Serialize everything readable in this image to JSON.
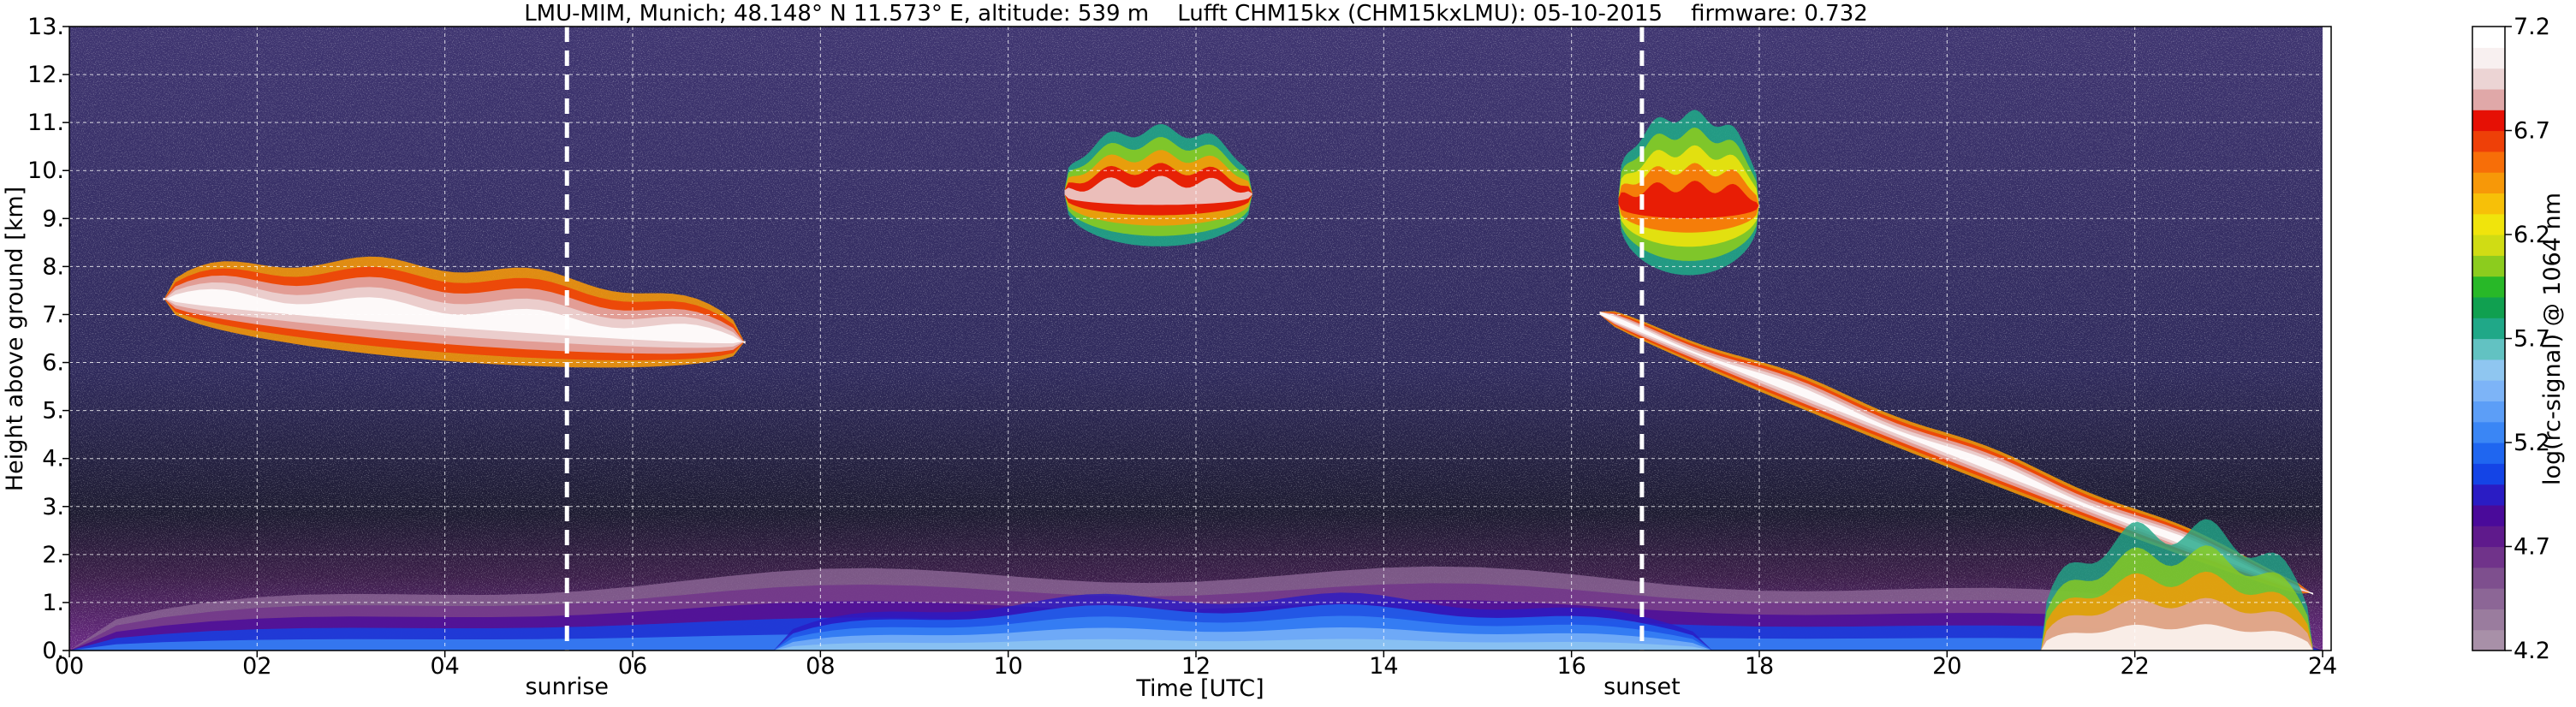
{
  "chart_data": {
    "type": "heatmap",
    "title": "LMU-MIM, Munich; 48.148° N 11.573° E, altitude: 539 m    Lufft CHM15kx (CHM15kxLMU): 05-10-2015    firmware: 0.732",
    "xlabel": "Time [UTC]",
    "ylabel": "Height above ground [km]",
    "xlim": [
      0,
      24
    ],
    "ylim": [
      0,
      13
    ],
    "x_ticks": [
      "00",
      "02",
      "04",
      "06",
      "08",
      "10",
      "12",
      "14",
      "16",
      "18",
      "20",
      "22",
      "24"
    ],
    "y_ticks": [
      "0.",
      "1.",
      "2.",
      "3.",
      "4.",
      "5.",
      "6.",
      "7.",
      "8.",
      "9.",
      "10.",
      "11.",
      "12.",
      "13."
    ],
    "grid": true,
    "markers": [
      {
        "label": "sunrise",
        "x": 5.3
      },
      {
        "label": "sunset",
        "x": 16.75
      }
    ],
    "colorbar": {
      "label": "log(rc-signal) @ 1064 nm",
      "range": [
        4.2,
        7.2
      ],
      "ticks": [
        "4.2",
        "4.7",
        "5.2",
        "5.7",
        "6.2",
        "6.7",
        "7.2"
      ],
      "colors": [
        "#a890a8",
        "#9a7c9e",
        "#8c6696",
        "#7e4f8e",
        "#70338a",
        "#5f1a8c",
        "#4a0a9a",
        "#2a1cc4",
        "#1444e6",
        "#1f66f0",
        "#3a86f5",
        "#5c9ef7",
        "#7db4f7",
        "#8fc6f0",
        "#62c2c2",
        "#20a888",
        "#10a050",
        "#28b828",
        "#8ccc1e",
        "#d0dc14",
        "#f0e40c",
        "#f7c008",
        "#f79808",
        "#f76e08",
        "#ee4008",
        "#e61005",
        "#e0a8a8",
        "#ecd4d4",
        "#f8f0f0",
        "#ffffff"
      ]
    },
    "features": [
      {
        "name": "boundary layer",
        "x": [
          0,
          24
        ],
        "height_km": [
          0,
          1.6
        ],
        "log_signal": [
          4.5,
          5.2
        ]
      },
      {
        "name": "daytime aerosol layer",
        "x": [
          7.5,
          17.5
        ],
        "height_km": [
          0,
          1.1
        ],
        "log_signal": [
          5.0,
          5.6
        ]
      },
      {
        "name": "cirrus band",
        "x": [
          1.0,
          7.2
        ],
        "height_km": [
          5.8,
          8.0
        ],
        "log_signal": [
          6.4,
          7.2
        ]
      },
      {
        "name": "cirrus",
        "x": [
          10.6,
          12.6
        ],
        "height_km": [
          8.6,
          11.3
        ],
        "log_signal": [
          5.8,
          7.0
        ]
      },
      {
        "name": "cirrus",
        "x": [
          16.5,
          18.0
        ],
        "height_km": [
          7.9,
          11.6
        ],
        "log_signal": [
          5.8,
          6.8
        ]
      },
      {
        "name": "descending cloud layer",
        "x": [
          16.3,
          23.9
        ],
        "height_km": [
          1.5,
          7.3
        ],
        "log_signal": [
          6.4,
          7.2
        ]
      },
      {
        "name": "low cloud / precipitation",
        "x": [
          21.0,
          23.9
        ],
        "height_km": [
          0,
          2.5
        ],
        "log_signal": [
          5.7,
          7.2
        ]
      }
    ]
  }
}
